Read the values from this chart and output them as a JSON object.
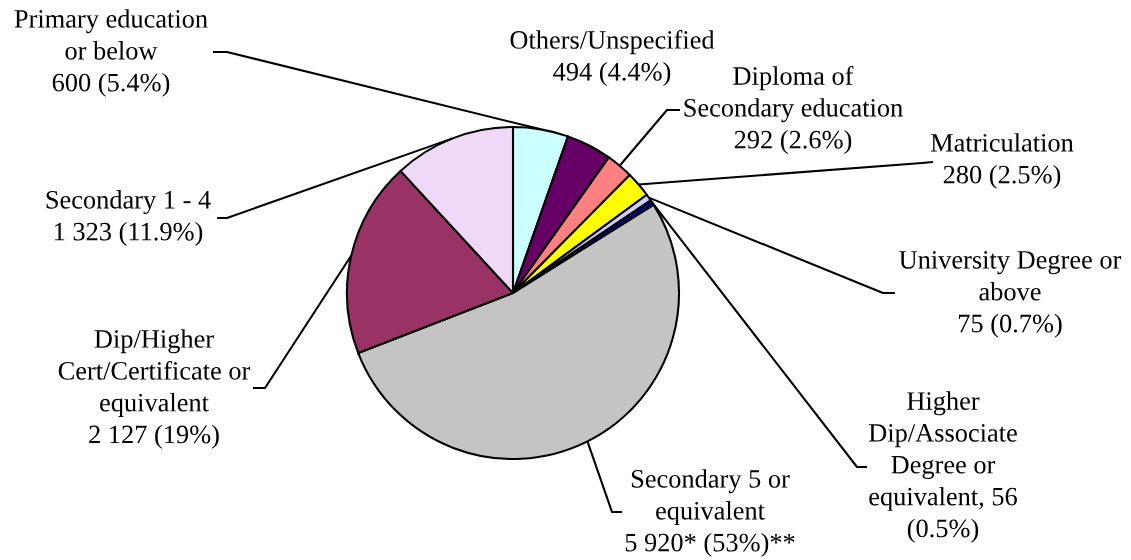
{
  "chart_data": {
    "type": "pie",
    "categories": [
      "Primary education\nor below",
      "Others/Unspecified",
      "Diploma of\nSecondary education",
      "Matriculation",
      "University Degree or\nabove",
      "Higher\nDip/Associate\nDegree or\nequivalent",
      "Secondary 5 or\nequivalent",
      "Dip/Higher\nCert/Certificate or\nequivalent",
      "Secondary 1 - 4"
    ],
    "values": [
      600,
      494,
      292,
      280,
      75,
      56,
      5920,
      2127,
      1323
    ],
    "value_labels": [
      "600 (5.4%)",
      "494 (4.4%)",
      "292 (2.6%)",
      "280 (2.5%)",
      "75 (0.7%)",
      "56\n(0.5%)",
      "5 920* (53%)**",
      "2 127 (19%)",
      "1 323 (11.9%)"
    ],
    "colors": [
      "#ccffff",
      "#660066",
      "#ff8080",
      "#ffff00",
      "#ccccff",
      "#000080",
      "#c4c4c4",
      "#993366",
      "#eed9f8"
    ]
  }
}
